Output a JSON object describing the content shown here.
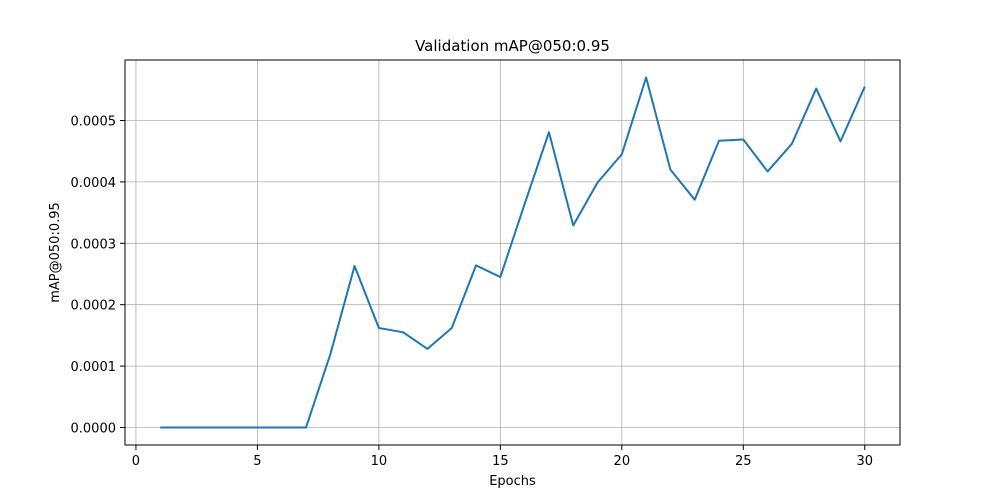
{
  "chart_data": {
    "type": "line",
    "title": "Validation mAP@050:0.95",
    "xlabel": "Epochs",
    "ylabel": "mAP@050:0.95",
    "xlim": [
      -0.45,
      31.45
    ],
    "ylim": [
      -2.85e-05,
      0.0005985
    ],
    "grid": true,
    "x_ticks": [
      0,
      5,
      10,
      15,
      20,
      25,
      30
    ],
    "x_tick_labels": [
      "0",
      "5",
      "10",
      "15",
      "20",
      "25",
      "30"
    ],
    "y_ticks": [
      0,
      0.0001,
      0.0002,
      0.0003,
      0.0004,
      0.0005
    ],
    "y_tick_labels": [
      "0.0000",
      "0.0001",
      "0.0002",
      "0.0003",
      "0.0004",
      "0.0005"
    ],
    "series": [
      {
        "color": "#1f77b4",
        "x": [
          1,
          2,
          3,
          4,
          5,
          6,
          7,
          8,
          9,
          10,
          11,
          12,
          13,
          14,
          15,
          16,
          17,
          18,
          19,
          20,
          21,
          22,
          23,
          24,
          25,
          26,
          27,
          28,
          29,
          30
        ],
        "values": [
          0,
          0,
          0,
          0,
          0,
          0,
          0,
          0.000119,
          0.000263,
          0.000162,
          0.000155,
          0.000128,
          0.000162,
          0.000264,
          0.000245,
          0.000364,
          0.000481,
          0.000329,
          0.000399,
          0.000445,
          0.00057,
          0.00042,
          0.000371,
          0.000467,
          0.000469,
          0.000417,
          0.000462,
          0.000552,
          0.000466,
          0.000555
        ]
      }
    ]
  }
}
